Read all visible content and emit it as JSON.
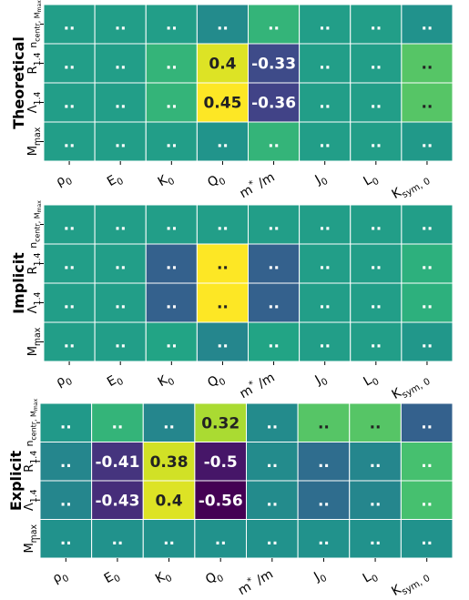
{
  "chart_data": [
    {
      "type": "heatmap",
      "title": "Theoretical",
      "x_tick_labels": [
        "ρ0",
        "E0",
        "K0",
        "Q0",
        "m*/m",
        "J0",
        "L0",
        "Ksym,0"
      ],
      "y_tick_labels": [
        "n_centr,Mmax",
        "R1.4",
        "Λ1.4",
        "Mmax"
      ],
      "values": [
        [
          0.0,
          0.0,
          0.0,
          -0.08,
          0.1,
          0.0,
          0.0,
          -0.05
        ],
        [
          0.0,
          0.0,
          0.1,
          0.4,
          -0.33,
          0.0,
          0.0,
          0.18
        ],
        [
          0.0,
          0.0,
          0.1,
          0.45,
          -0.36,
          0.0,
          0.0,
          0.18
        ],
        [
          0.0,
          0.0,
          0.0,
          -0.04,
          0.1,
          0.0,
          0.0,
          -0.02
        ]
      ],
      "cell_labels": [
        [
          "..",
          "..",
          "..",
          "..",
          "..",
          "..",
          "..",
          ".."
        ],
        [
          "..",
          "..",
          "..",
          "0.4",
          "-0.33",
          "..",
          "..",
          ".."
        ],
        [
          "..",
          "..",
          "..",
          "0.45",
          "-0.36",
          "..",
          "..",
          ".."
        ],
        [
          "..",
          "..",
          "..",
          "..",
          "..",
          "..",
          "..",
          ".."
        ]
      ],
      "colormap": "viridis",
      "vlim": [
        -0.56,
        0.45
      ],
      "colors": {
        "cell_text_light": "#ffffff",
        "cell_text_dark": "#222222",
        "cell_border": "#ffffff"
      }
    },
    {
      "type": "heatmap",
      "title": "Implicit",
      "x_tick_labels": [
        "ρ0",
        "E0",
        "K0",
        "Q0",
        "m*/m",
        "J0",
        "L0",
        "Ksym,0"
      ],
      "y_tick_labels": [
        "n_centr,Mmax",
        "R1.4",
        "Λ1.4",
        "Mmax"
      ],
      "values": [
        [
          0.0,
          0.0,
          0.0,
          0.0,
          0.0,
          0.0,
          0.0,
          0.0
        ],
        [
          0.0,
          0.0,
          -0.25,
          0.45,
          -0.25,
          0.0,
          0.0,
          0.08
        ],
        [
          0.0,
          0.0,
          -0.25,
          0.45,
          -0.25,
          0.0,
          0.0,
          0.08
        ],
        [
          0.0,
          0.0,
          0.03,
          -0.1,
          0.03,
          0.0,
          0.0,
          -0.03
        ]
      ],
      "cell_labels": [
        [
          "..",
          "..",
          "..",
          "..",
          "..",
          "..",
          "..",
          ".."
        ],
        [
          "..",
          "..",
          "..",
          "..",
          "..",
          "..",
          "..",
          ".."
        ],
        [
          "..",
          "..",
          "..",
          "..",
          "..",
          "..",
          "..",
          ".."
        ],
        [
          "..",
          "..",
          "..",
          "..",
          "..",
          "..",
          "..",
          ".."
        ]
      ],
      "colormap": "viridis",
      "vlim": [
        -0.56,
        0.45
      ]
    },
    {
      "type": "heatmap",
      "title": "Explicit",
      "x_tick_labels": [
        "ρ0",
        "E0",
        "K0",
        "Q0",
        "m*/m",
        "J0",
        "L0",
        "Ksym,0"
      ],
      "y_tick_labels": [
        "n_centr,Mmax",
        "R1.4",
        "Λ1.4",
        "Mmax"
      ],
      "values": [
        [
          -0.02,
          0.1,
          -0.1,
          0.32,
          -0.08,
          0.18,
          0.18,
          -0.25
        ],
        [
          -0.1,
          -0.41,
          0.38,
          -0.5,
          -0.08,
          -0.2,
          -0.1,
          0.15
        ],
        [
          -0.1,
          -0.43,
          0.4,
          -0.56,
          -0.08,
          -0.2,
          -0.1,
          0.15
        ],
        [
          -0.05,
          -0.05,
          -0.05,
          -0.05,
          -0.05,
          -0.05,
          -0.05,
          -0.05
        ]
      ],
      "cell_labels": [
        [
          "..",
          "..",
          "..",
          "0.32",
          "..",
          "..",
          "..",
          ".."
        ],
        [
          "..",
          "-0.41",
          "0.38",
          "-0.5",
          "..",
          "..",
          "..",
          ".."
        ],
        [
          "..",
          "-0.43",
          "0.4",
          "-0.56",
          "..",
          "..",
          "..",
          ".."
        ],
        [
          "..",
          "..",
          "..",
          "..",
          "..",
          "..",
          "..",
          ".."
        ]
      ],
      "colormap": "viridis",
      "vlim": [
        -0.56,
        0.45
      ]
    }
  ]
}
